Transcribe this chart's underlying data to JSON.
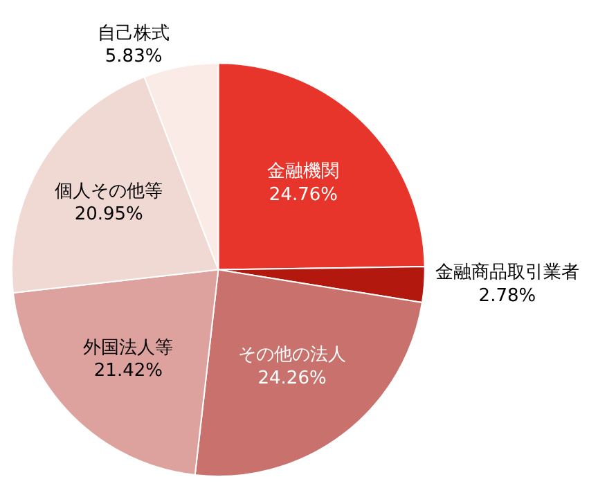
{
  "chart_data": {
    "type": "pie",
    "categories": [
      "金融機関",
      "金融商品取引業者",
      "その他の法人",
      "外国法人等",
      "個人その他等",
      "自己株式"
    ],
    "values": [
      24.76,
      2.78,
      24.26,
      21.42,
      20.95,
      5.83
    ],
    "value_labels": [
      "24.76%",
      "2.78%",
      "24.26%",
      "21.42%",
      "20.95%",
      "5.83%"
    ],
    "colors": [
      "#e8352c",
      "#b3180e",
      "#c9716c",
      "#dda29e",
      "#f0d9d3",
      "#fbebe7"
    ]
  }
}
